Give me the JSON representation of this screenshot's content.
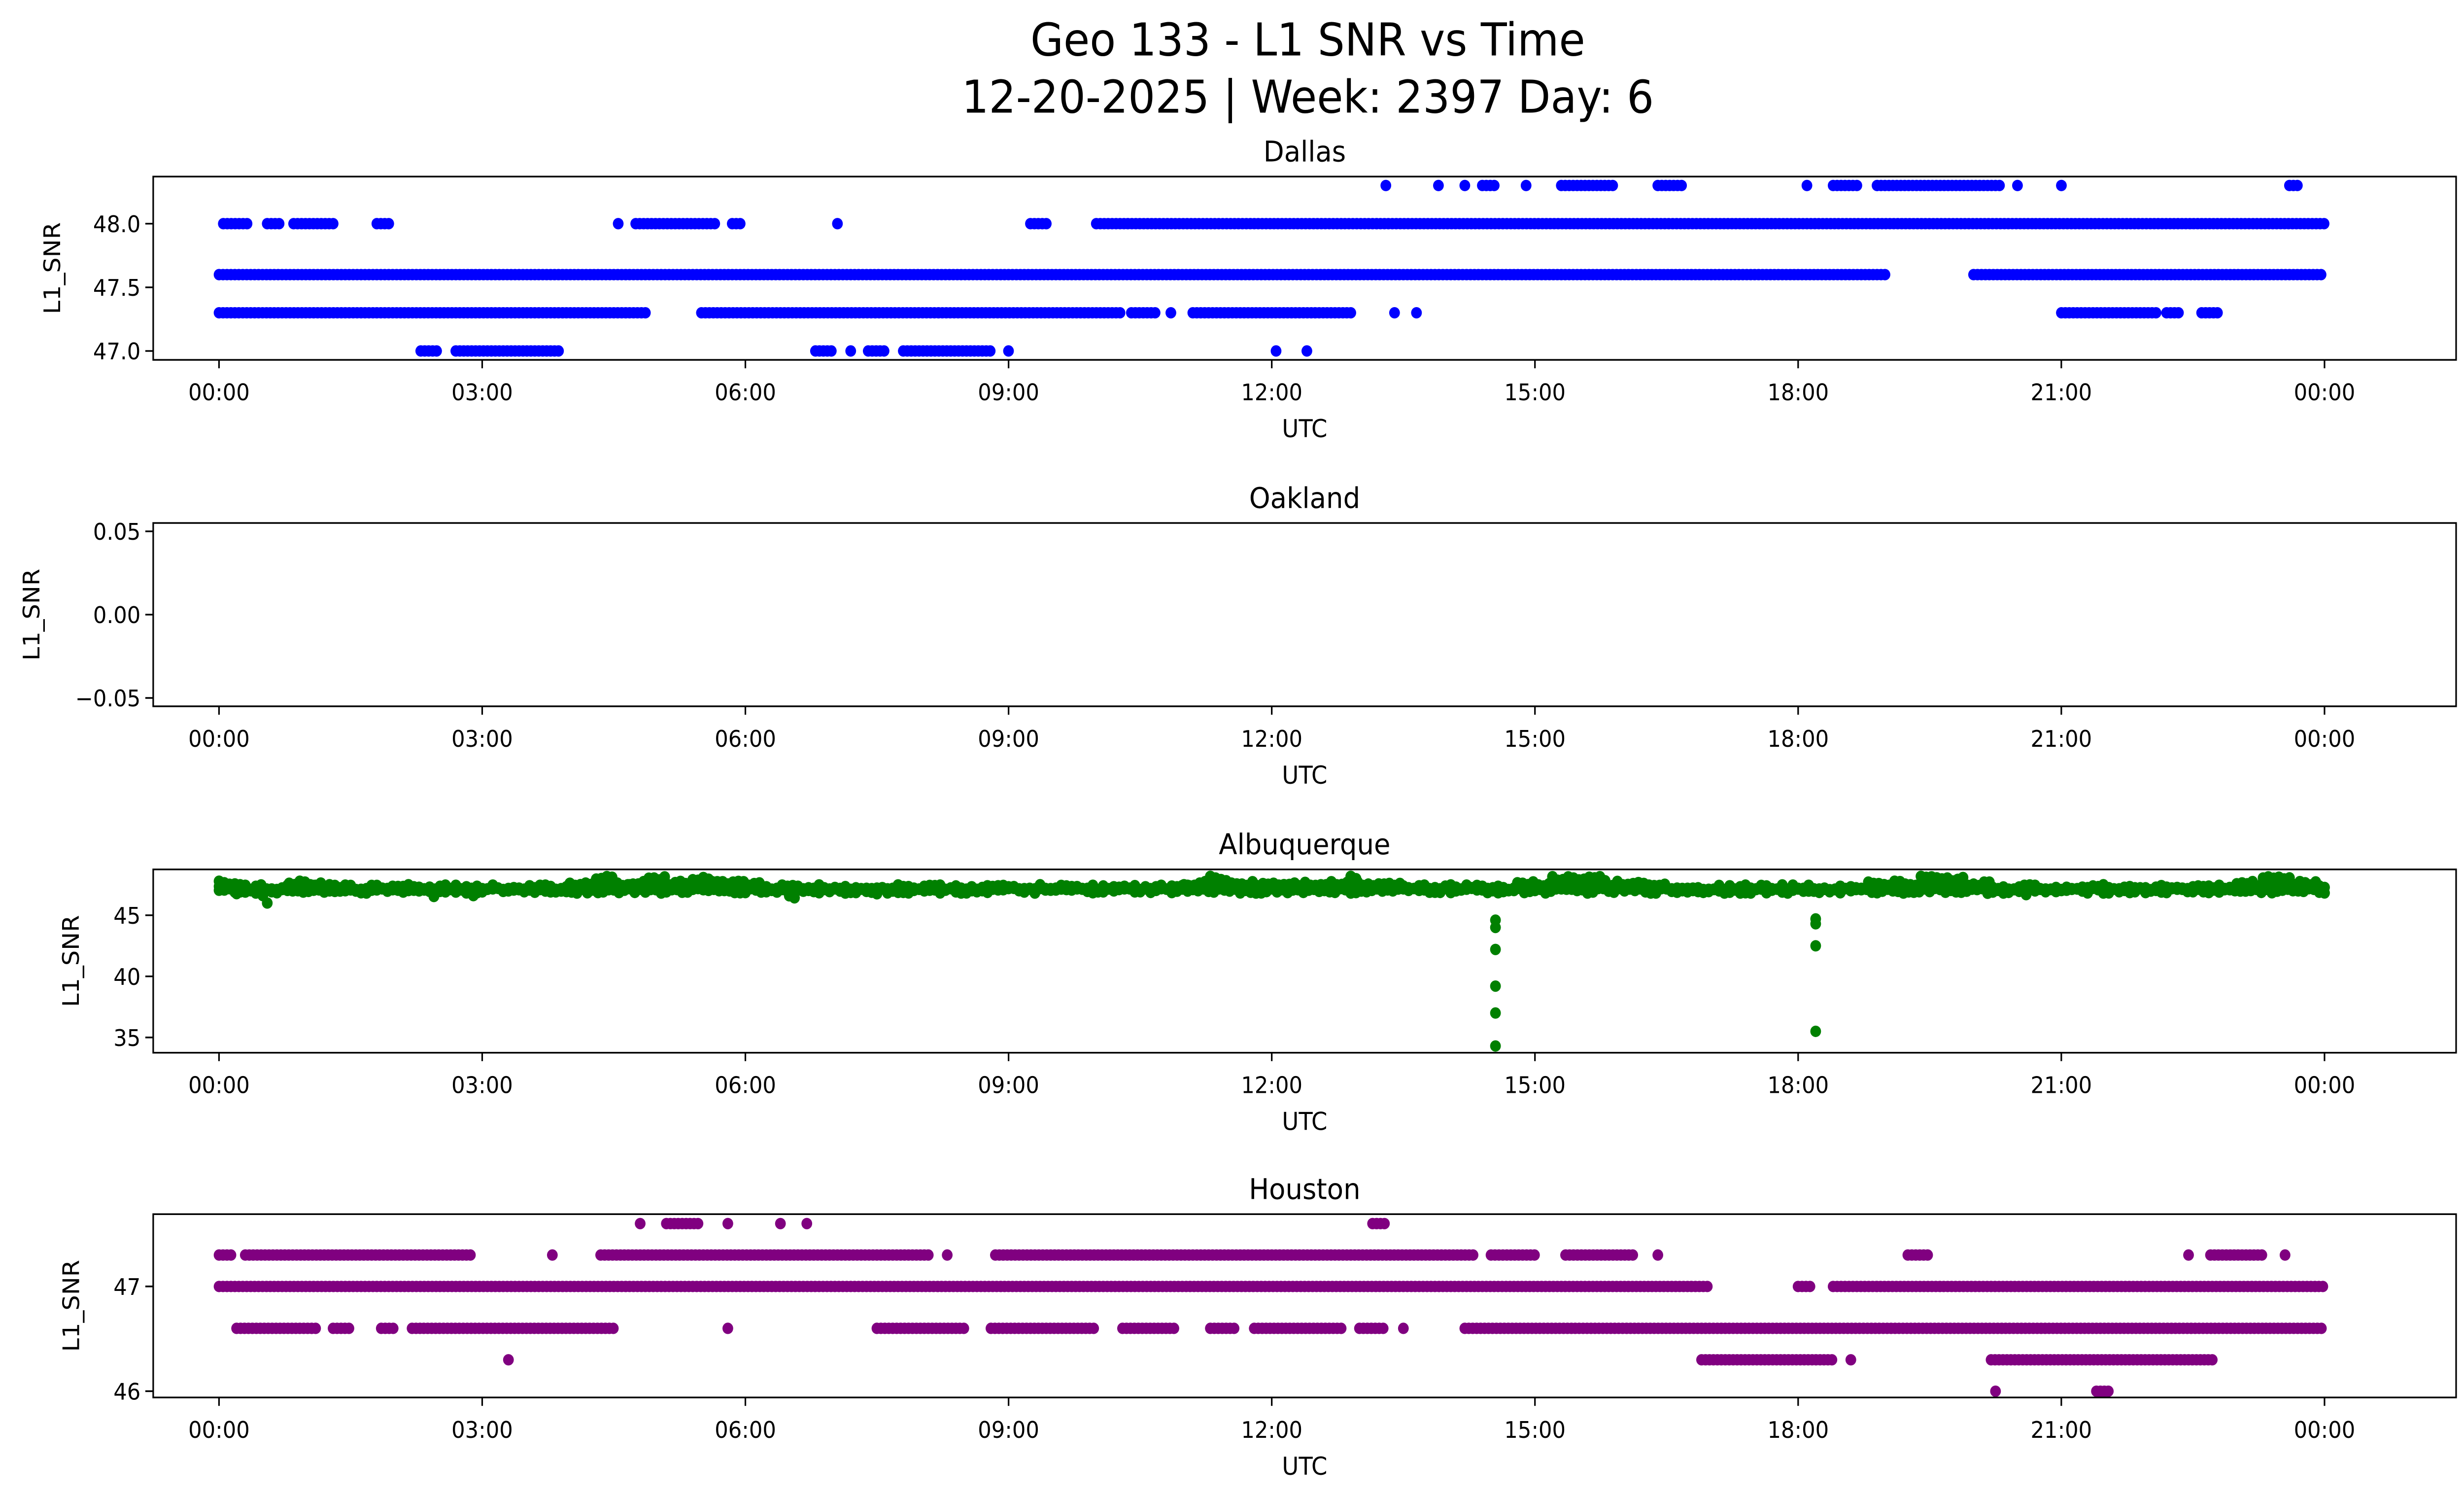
{
  "title_line1": "Geo 133 - L1 SNR vs Time",
  "title_line2": "12-20-2025 | Week: 2397 Day: 6",
  "chart_data": [
    {
      "type": "scatter",
      "title": "Dallas",
      "xlabel": "UTC",
      "ylabel": "L1_SNR",
      "color": "#0000ff",
      "xlim_hours": [
        -0.75,
        25.5
      ],
      "xticks": [
        "00:00",
        "03:00",
        "06:00",
        "09:00",
        "12:00",
        "15:00",
        "18:00",
        "21:00",
        "00:00"
      ],
      "ylim": [
        46.93,
        48.37
      ],
      "yticks": [
        {
          "v": 47.0,
          "label": "47.0"
        },
        {
          "v": 47.5,
          "label": "47.5"
        },
        {
          "v": 48.0,
          "label": "48.0"
        }
      ],
      "segments": [
        {
          "y": 48.3,
          "ranges": [
            [
              13.3,
              13.3
            ],
            [
              13.9,
              13.9
            ],
            [
              14.2,
              14.2
            ],
            [
              14.4,
              14.55
            ],
            [
              14.9,
              14.9
            ],
            [
              15.3,
              15.9
            ],
            [
              16.4,
              16.7
            ],
            [
              18.1,
              18.1
            ],
            [
              18.4,
              18.7
            ],
            [
              18.9,
              20.3
            ],
            [
              20.5,
              20.5
            ],
            [
              21.0,
              21.0
            ],
            [
              23.6,
              23.7
            ]
          ]
        },
        {
          "y": 48.0,
          "ranges": [
            [
              0.05,
              0.35
            ],
            [
              0.55,
              0.7
            ],
            [
              0.85,
              1.3
            ],
            [
              1.8,
              1.95
            ],
            [
              4.55,
              4.55
            ],
            [
              4.75,
              5.65
            ],
            [
              5.85,
              5.95
            ],
            [
              7.05,
              7.05
            ],
            [
              9.25,
              9.45
            ],
            [
              10.0,
              24.0
            ]
          ]
        },
        {
          "y": 47.6,
          "ranges": [
            [
              0.0,
              19.0
            ],
            [
              20.0,
              24.0
            ]
          ]
        },
        {
          "y": 47.3,
          "ranges": [
            [
              0.0,
              4.9
            ],
            [
              5.5,
              10.3
            ],
            [
              10.4,
              10.7
            ],
            [
              10.85,
              10.85
            ],
            [
              11.1,
              12.9
            ],
            [
              13.4,
              13.4
            ],
            [
              13.65,
              13.65
            ],
            [
              21.0,
              22.1
            ],
            [
              22.2,
              22.35
            ],
            [
              22.6,
              22.8
            ]
          ]
        },
        {
          "y": 47.0,
          "ranges": [
            [
              2.3,
              2.5
            ],
            [
              2.7,
              3.9
            ],
            [
              6.8,
              7.0
            ],
            [
              7.2,
              7.2
            ],
            [
              7.4,
              7.6
            ],
            [
              7.8,
              8.8
            ],
            [
              9.0,
              9.0
            ],
            [
              12.05,
              12.05
            ],
            [
              12.4,
              12.4
            ]
          ]
        }
      ],
      "outliers": []
    },
    {
      "type": "scatter",
      "title": "Oakland",
      "xlabel": "UTC",
      "ylabel": "L1_SNR",
      "color": "#0000ff",
      "xlim_hours": [
        -0.75,
        25.5
      ],
      "xticks": [
        "00:00",
        "03:00",
        "06:00",
        "09:00",
        "12:00",
        "15:00",
        "18:00",
        "21:00",
        "00:00"
      ],
      "ylim": [
        -0.055,
        0.055
      ],
      "yticks": [
        {
          "v": -0.05,
          "label": "−0.05"
        },
        {
          "v": 0.0,
          "label": "0.00"
        },
        {
          "v": 0.05,
          "label": "0.05"
        }
      ],
      "segments": [],
      "outliers": []
    },
    {
      "type": "scatter",
      "title": "Albuquerque",
      "xlabel": "UTC",
      "ylabel": "L1_SNR",
      "color": "#008000",
      "xlim_hours": [
        -0.75,
        25.5
      ],
      "xticks": [
        "00:00",
        "03:00",
        "06:00",
        "09:00",
        "12:00",
        "15:00",
        "18:00",
        "21:00",
        "00:00"
      ],
      "ylim": [
        33.75,
        48.75
      ],
      "yticks": [
        {
          "v": 35,
          "label": "35"
        },
        {
          "v": 40,
          "label": "40"
        },
        {
          "v": 45,
          "label": "45"
        }
      ],
      "segments": [
        {
          "y": 47.3,
          "ranges": [
            [
              0.0,
              24.0
            ]
          ]
        },
        {
          "y": 47.0,
          "ranges": [
            [
              0.0,
              24.0
            ]
          ]
        },
        {
          "y": 47.6,
          "ranges": [
            [
              0.0,
              0.3
            ],
            [
              0.8,
              1.2
            ],
            [
              4.0,
              6.2
            ],
            [
              11.0,
              13.5
            ],
            [
              14.8,
              16.5
            ],
            [
              18.8,
              20.2
            ],
            [
              23.0,
              23.9
            ]
          ]
        },
        {
          "y": 48.0,
          "ranges": [
            [
              4.3,
              4.5
            ],
            [
              4.9,
              5.1
            ],
            [
              5.4,
              5.6
            ],
            [
              11.3,
              11.5
            ],
            [
              12.9,
              13.0
            ],
            [
              15.2,
              15.8
            ],
            [
              19.4,
              19.9
            ],
            [
              23.3,
              23.6
            ]
          ]
        },
        {
          "y": 46.6,
          "ranges": [
            [
              0.2,
              0.2
            ],
            [
              0.5,
              0.5
            ],
            [
              2.45,
              2.45
            ],
            [
              2.9,
              2.9
            ],
            [
              6.5,
              6.6
            ],
            [
              7.5,
              7.5
            ],
            [
              20.6,
              20.6
            ]
          ]
        }
      ],
      "outliers": [
        [
          0.55,
          46.0
        ],
        [
          14.55,
          44.0
        ],
        [
          14.55,
          44.6
        ],
        [
          14.55,
          42.2
        ],
        [
          14.55,
          39.2
        ],
        [
          14.55,
          37.0
        ],
        [
          14.55,
          34.3
        ],
        [
          18.2,
          44.7
        ],
        [
          18.2,
          44.3
        ],
        [
          18.2,
          42.5
        ],
        [
          18.2,
          35.5
        ]
      ]
    },
    {
      "type": "scatter",
      "title": "Houston",
      "xlabel": "UTC",
      "ylabel": "L1_SNR",
      "color": "#800080",
      "xlim_hours": [
        -0.75,
        25.5
      ],
      "xticks": [
        "00:00",
        "03:00",
        "06:00",
        "09:00",
        "12:00",
        "15:00",
        "18:00",
        "21:00",
        "00:00"
      ],
      "ylim": [
        45.94,
        47.69
      ],
      "yticks": [
        {
          "v": 46,
          "label": "46"
        },
        {
          "v": 47,
          "label": "47"
        }
      ],
      "segments": [
        {
          "y": 47.6,
          "ranges": [
            [
              4.8,
              4.8
            ],
            [
              5.1,
              5.5
            ],
            [
              5.8,
              5.8
            ],
            [
              6.4,
              6.4
            ],
            [
              6.7,
              6.7
            ],
            [
              13.15,
              13.3
            ]
          ]
        },
        {
          "y": 47.3,
          "ranges": [
            [
              0.0,
              0.15
            ],
            [
              0.3,
              2.9
            ],
            [
              3.8,
              3.8
            ],
            [
              4.35,
              8.1
            ],
            [
              8.3,
              8.3
            ],
            [
              8.85,
              14.3
            ],
            [
              14.5,
              15.0
            ],
            [
              15.35,
              16.15
            ],
            [
              16.4,
              16.4
            ],
            [
              19.25,
              19.5
            ],
            [
              22.45,
              22.45
            ],
            [
              22.7,
              23.3
            ],
            [
              23.55,
              23.55
            ]
          ]
        },
        {
          "y": 47.0,
          "ranges": [
            [
              0.0,
              17.0
            ],
            [
              18.0,
              18.15
            ],
            [
              18.4,
              24.0
            ]
          ]
        },
        {
          "y": 46.6,
          "ranges": [
            [
              0.2,
              1.1
            ],
            [
              1.3,
              1.5
            ],
            [
              1.85,
              2.0
            ],
            [
              2.2,
              4.5
            ],
            [
              5.8,
              5.8
            ],
            [
              7.5,
              8.5
            ],
            [
              8.8,
              10.0
            ],
            [
              10.3,
              10.9
            ],
            [
              11.3,
              11.6
            ],
            [
              11.8,
              12.8
            ],
            [
              13.0,
              13.3
            ],
            [
              13.5,
              13.5
            ],
            [
              14.2,
              24.0
            ]
          ]
        },
        {
          "y": 46.3,
          "ranges": [
            [
              3.3,
              3.3
            ],
            [
              16.9,
              18.4
            ],
            [
              18.6,
              18.6
            ],
            [
              20.2,
              22.75
            ]
          ]
        },
        {
          "y": 46.0,
          "ranges": [
            [
              20.25,
              20.25
            ],
            [
              21.4,
              21.55
            ]
          ]
        }
      ],
      "outliers": []
    }
  ]
}
